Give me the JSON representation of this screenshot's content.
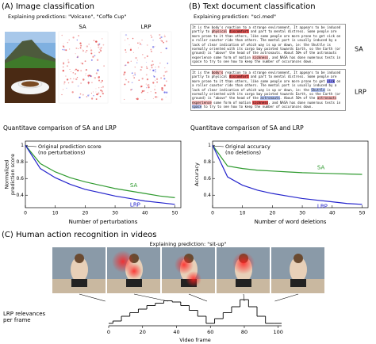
{
  "panels": [
    {
      "title": "(A) Image classification",
      "subtitle": "Explaining predictions: \"Volcano\", \"Coffe Cup\"",
      "labels": [
        "SA",
        "LRP"
      ]
    },
    {
      "title": "(B) Text document classification",
      "subtitle": "Explaining prediction: \"sci.med\"",
      "labels": [
        "SA",
        "LRP"
      ],
      "documents": [
        [
          {
            "text": "It is the body's reaction to a strange environment. It appears to be induced partly to "
          },
          {
            "text": "physical",
            "hl": "#f4b8b8"
          },
          {
            "text": " "
          },
          {
            "text": "discomfort",
            "hl": "#e05050"
          },
          {
            "text": " and part to mental distress. Some people are more prone to it than others, like some people are more prone to get sick on a roller coaster ride than others. The mental part is usually induced by a lack of clear indication of which way is up or down, ie: the Shuttle is normally oriented with its cargo bay pointed towards Earth, so the Earth (or ground) is \"above\" the head of the astronauts. About 50% of the astronauts experience some form of motion "
          },
          {
            "text": "sickness",
            "hl": "#f4b8b8"
          },
          {
            "text": ", and NASA has done numerous tests in space to try to see how to keep the number of occurances down."
          }
        ],
        [
          {
            "text": "It is the "
          },
          {
            "text": "body's",
            "hl": "#f4b8b8"
          },
          {
            "text": " reaction to a strange environment. It appears to be induced partly to physical "
          },
          {
            "text": "discomfort",
            "hl": "#e05050"
          },
          {
            "text": " and part to mental distress. Some people are more prone to it than others, like some people are more prone to get "
          },
          {
            "text": "sick",
            "hl": "#8080ee"
          },
          {
            "text": " on a roller coaster ride than others. The mental part is usually induced by a lack of clear indication of which way is up or down, ie: the "
          },
          {
            "text": "Shuttle",
            "hl": "#b8c8f4"
          },
          {
            "text": " is normally oriented with its cargo bay pointed towards Earth, so the Earth (or ground) is \"above\" the head of the "
          },
          {
            "text": "astronauts",
            "hl": "#b8c8f4"
          },
          {
            "text": ". About 50% of the "
          },
          {
            "text": "astronauts",
            "hl": "#f4b8b8"
          },
          {
            "text": " "
          },
          {
            "text": "experience",
            "hl": "#f4b8b8"
          },
          {
            "text": " some form of motion "
          },
          {
            "text": "sickness",
            "hl": "#e05050"
          },
          {
            "text": ", and NASA has done numerous tests in "
          },
          {
            "text": "space",
            "hl": "#b8c8f4"
          },
          {
            "text": " to try to see how to keep the number of occurances down."
          }
        ]
      ]
    },
    {
      "title": "(C) Human action recognition in videos",
      "subtitle": "Explaining prediction: \"sit-up\""
    }
  ],
  "chart_data": [
    {
      "type": "line",
      "title": "Quantitave comparison of SA and LRP",
      "ylabel": [
        "Normalized",
        "prediction score"
      ],
      "xlabel": "Number of perturbations",
      "annotation": [
        "Original prediction score",
        "(no perturbations)"
      ],
      "x": [
        0,
        5,
        10,
        15,
        20,
        25,
        30,
        35,
        40,
        45,
        50
      ],
      "series": [
        {
          "name": "SA",
          "color": "#2f9a2f",
          "values": [
            1.0,
            0.78,
            0.68,
            0.61,
            0.56,
            0.52,
            0.48,
            0.45,
            0.42,
            0.39,
            0.37
          ]
        },
        {
          "name": "LRP",
          "color": "#2424cc",
          "values": [
            1.0,
            0.72,
            0.61,
            0.53,
            0.47,
            0.43,
            0.39,
            0.36,
            0.33,
            0.31,
            0.29
          ]
        }
      ],
      "xlim": [
        0,
        52
      ],
      "ylim": [
        0.25,
        1.05
      ],
      "xticks": [
        0,
        10,
        20,
        30,
        40,
        50
      ],
      "yticks": [
        0.4,
        0.6,
        0.8,
        1.0
      ]
    },
    {
      "type": "line",
      "title": "Quantitave comparison of SA and LRP",
      "ylabel": [
        "Accuracy"
      ],
      "xlabel": "Number of word deletions",
      "annotation": [
        "Original accuracy",
        "(no deletions)"
      ],
      "x": [
        0,
        5,
        10,
        15,
        20,
        25,
        30,
        35,
        40,
        45,
        50
      ],
      "series": [
        {
          "name": "SA",
          "color": "#2f9a2f",
          "values": [
            1.0,
            0.75,
            0.72,
            0.7,
            0.69,
            0.68,
            0.67,
            0.665,
            0.66,
            0.655,
            0.65
          ]
        },
        {
          "name": "LRP",
          "color": "#2424cc",
          "values": [
            1.0,
            0.62,
            0.52,
            0.46,
            0.42,
            0.39,
            0.36,
            0.34,
            0.32,
            0.3,
            0.29
          ]
        }
      ],
      "xlim": [
        0,
        52
      ],
      "ylim": [
        0.25,
        1.05
      ],
      "xticks": [
        0,
        10,
        20,
        30,
        40,
        50
      ],
      "yticks": [
        0.4,
        0.6,
        0.8,
        1.0
      ]
    },
    {
      "type": "step",
      "ylabel": [
        "LRP relevances",
        "per frame"
      ],
      "xlabel": "Video frame",
      "x": [
        0,
        5,
        10,
        15,
        20,
        25,
        30,
        35,
        40,
        45,
        50,
        55,
        60,
        65,
        70,
        75,
        80,
        85,
        90,
        95,
        100
      ],
      "values": [
        0,
        0.1,
        0.3,
        0.45,
        0.6,
        0.75,
        0.85,
        0.95,
        0.9,
        0.75,
        0.55,
        0.3,
        0,
        0.2,
        0.45,
        0.7,
        1.0,
        0.7,
        0.3,
        0,
        0
      ],
      "color": "#000000",
      "xlim": [
        0,
        102
      ],
      "ylim": [
        0,
        1
      ],
      "xticks": [
        0,
        20,
        40,
        60,
        80,
        100
      ]
    }
  ]
}
